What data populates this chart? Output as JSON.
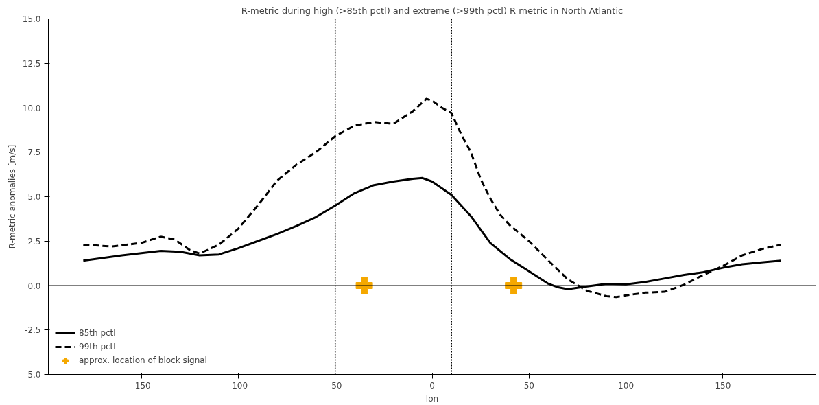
{
  "chart_data": {
    "type": "line",
    "title": "R-metric during high (>85th pctl) and extreme (>99th pctl) R metric in North Atlantic",
    "xlabel": "lon",
    "ylabel": "R-metric anomalies [m/s]",
    "xlim": [
      -198,
      198
    ],
    "xticks": [
      -150,
      -100,
      -50,
      0,
      50,
      100,
      150
    ],
    "ylim": [
      -5,
      15
    ],
    "yticks": [
      {
        "value": -5,
        "label": "-5.0"
      },
      -2.5,
      {
        "value": 0,
        "label": "0.0"
      },
      2.5,
      {
        "value": 5,
        "label": "5.0"
      },
      7.5,
      {
        "value": 10,
        "label": "10.0"
      },
      12.5,
      {
        "value": 15,
        "label": "15.0"
      }
    ],
    "grid": false,
    "legend": "bottom left",
    "series": [
      {
        "name": "85th pctl",
        "type": "line",
        "color": "#000000",
        "line_style": "solid",
        "marker": "none",
        "x": [
          -180,
          -160,
          -140,
          -130,
          -120,
          -110,
          -100,
          -90,
          -80,
          -70,
          -60,
          -50,
          -40,
          -30,
          -20,
          -10,
          -5,
          0,
          10,
          20,
          30,
          40,
          50,
          60,
          65,
          70,
          80,
          90,
          100,
          110,
          120,
          130,
          140,
          150,
          160,
          170,
          180
        ],
        "values": [
          1.4,
          1.7,
          1.95,
          1.9,
          1.7,
          1.75,
          2.1,
          2.5,
          2.9,
          3.35,
          3.85,
          4.5,
          5.2,
          5.65,
          5.85,
          6.0,
          6.05,
          5.85,
          5.1,
          3.9,
          2.4,
          1.5,
          0.8,
          0.1,
          -0.1,
          -0.2,
          -0.05,
          0.1,
          0.07,
          0.2,
          0.4,
          0.6,
          0.75,
          1.0,
          1.2,
          1.3,
          1.4
        ]
      },
      {
        "name": "99th pctl",
        "type": "line",
        "color": "#000000",
        "line_style": "dashed",
        "marker": "none",
        "x": [
          -180,
          -165,
          -150,
          -140,
          -133,
          -125,
          -120,
          -110,
          -100,
          -90,
          -80,
          -70,
          -60,
          -50,
          -40,
          -30,
          -20,
          -10,
          -3,
          0,
          5,
          10,
          15,
          20,
          25,
          30,
          35,
          40,
          50,
          60,
          70,
          80,
          90,
          95,
          100,
          110,
          120,
          130,
          140,
          150,
          160,
          170,
          180
        ],
        "values": [
          2.3,
          2.2,
          2.4,
          2.75,
          2.6,
          2.0,
          1.8,
          2.3,
          3.2,
          4.5,
          5.9,
          6.8,
          7.5,
          8.4,
          9.0,
          9.2,
          9.1,
          9.8,
          10.5,
          10.4,
          10.0,
          9.7,
          8.5,
          7.5,
          6.0,
          4.9,
          4.0,
          3.4,
          2.5,
          1.4,
          0.35,
          -0.3,
          -0.6,
          -0.65,
          -0.55,
          -0.4,
          -0.35,
          0.05,
          0.6,
          1.1,
          1.7,
          2.05,
          2.3
        ]
      },
      {
        "name": "approx. location of block signal",
        "type": "scatter",
        "color": "#f5a800",
        "marker": "cross",
        "x": [
          -35,
          42
        ],
        "values": [
          0,
          0
        ]
      }
    ],
    "ref_lines": [
      {
        "axis": "x",
        "value": -50,
        "label": null,
        "color": "#000000",
        "line_style": "dotted"
      },
      {
        "axis": "x",
        "value": 10,
        "label": null,
        "color": "#000000",
        "line_style": "dotted"
      },
      {
        "axis": "y",
        "value": 0,
        "label": null,
        "color": "#000000",
        "line_style": "solid"
      }
    ]
  }
}
